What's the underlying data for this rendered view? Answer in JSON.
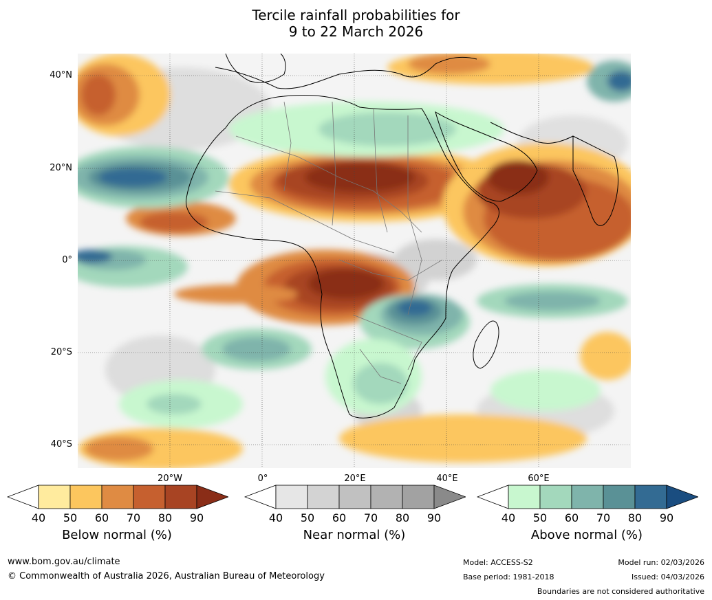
{
  "title": {
    "line1": "Tercile rainfall probabilities for",
    "line2": "9 to 22 March 2026"
  },
  "map": {
    "lat_labels": [
      "40°N",
      "20°N",
      "0°",
      "20°S",
      "40°S"
    ],
    "lon_labels": [
      "20°W",
      "0°",
      "20°E",
      "40°E",
      "60°E"
    ]
  },
  "legend": {
    "below": {
      "label": "Below normal (%)",
      "ticks": [
        "40",
        "50",
        "60",
        "70",
        "80",
        "90"
      ],
      "colors": [
        "#ffffff",
        "#ffeb9e",
        "#fcc65e",
        "#df8b43",
        "#c6602f",
        "#a84423",
        "#8a2d17"
      ]
    },
    "near": {
      "label": "Near normal (%)",
      "ticks": [
        "40",
        "50",
        "60",
        "70",
        "80",
        "90"
      ],
      "colors": [
        "#ffffff",
        "#e6e6e6",
        "#d3d3d3",
        "#c1c1c1",
        "#b2b2b2",
        "#a2a2a2",
        "#8a8a8a"
      ]
    },
    "above": {
      "label": "Above normal (%)",
      "ticks": [
        "40",
        "50",
        "60",
        "70",
        "80",
        "90"
      ],
      "colors": [
        "#ffffff",
        "#c8f7cf",
        "#a3d8bc",
        "#7fb4ab",
        "#5a9196",
        "#336b93",
        "#1a4d80"
      ]
    }
  },
  "footer": {
    "url": "www.bom.gov.au/climate",
    "copyright": "© Commonwealth of Australia 2026, Australian Bureau of Meteorology",
    "model": "Model: ACCESS-S2",
    "base_period": "Base period: 1981-2018",
    "model_run": "Model run: 02/03/2026",
    "issued": "Issued: 04/03/2026",
    "disclaimer": "Boundaries are not considered authoritative"
  }
}
